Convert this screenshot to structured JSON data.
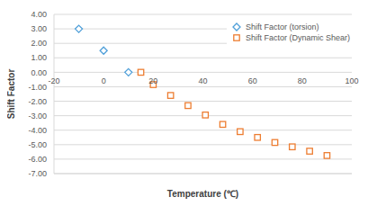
{
  "chart_data": {
    "type": "scatter",
    "x_label": "Temperature (℃)",
    "y_label": "Shift Factor",
    "series": [
      {
        "name": "Shift Factor (torsion)",
        "color": "#4f9fd9",
        "marker": "diamond",
        "x": [
          -10,
          0,
          10
        ],
        "values": [
          3.0,
          1.5,
          0.0
        ]
      },
      {
        "name": "Shift Factor (Dynamic Shear)",
        "color": "#ed7d31",
        "marker": "square",
        "x": [
          15,
          20,
          27,
          34,
          41,
          48,
          55,
          62,
          69,
          76,
          83,
          90
        ],
        "values": [
          0.0,
          -0.85,
          -1.6,
          -2.3,
          -2.95,
          -3.6,
          -4.1,
          -4.5,
          -4.85,
          -5.15,
          -5.45,
          -5.75
        ]
      }
    ],
    "xlim": [
      -20,
      100
    ],
    "xticks": [
      -20,
      0,
      20,
      40,
      60,
      80,
      100
    ],
    "ylim": [
      -7,
      4
    ],
    "yticks": [
      {
        "value": 4,
        "label": "4.00"
      },
      {
        "value": 3,
        "label": "3.00"
      },
      {
        "value": 2,
        "label": "2.00"
      },
      {
        "value": 1,
        "label": "1.00"
      },
      {
        "value": 0,
        "label": "0.00"
      },
      {
        "value": -1,
        "label": "-1.00"
      },
      {
        "value": -2,
        "label": "-2.00"
      },
      {
        "value": -3,
        "label": "-3.00"
      },
      {
        "value": -4,
        "label": "-4.00"
      },
      {
        "value": -5,
        "label": "-5.00"
      },
      {
        "value": -6,
        "label": "-6.00"
      },
      {
        "value": -7,
        "label": "-7.00"
      }
    ],
    "grid": true,
    "legend": "top-right"
  }
}
